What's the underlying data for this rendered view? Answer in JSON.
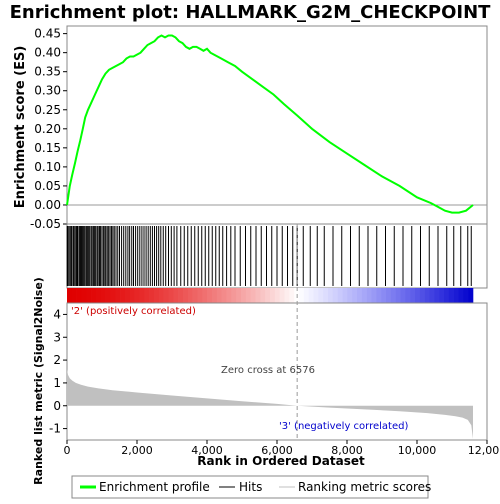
{
  "chart_data": {
    "type": "line",
    "title": "Enrichment plot: HALLMARK_G2M_CHECKPOINT",
    "panels": {
      "es": {
        "ylabel": "Enrichment score (ES)",
        "ylim": [
          -0.05,
          0.47
        ],
        "yticks": [
          "0.45",
          "0.40",
          "0.35",
          "0.30",
          "0.25",
          "0.20",
          "0.15",
          "0.10",
          "0.05",
          "0.00",
          "-0.05"
        ],
        "ytick_values": [
          0.45,
          0.4,
          0.35,
          0.3,
          0.25,
          0.2,
          0.15,
          0.1,
          0.05,
          0.0,
          -0.05
        ],
        "series": {
          "name": "Enrichment profile",
          "color": "#00ff00",
          "x": [
            0,
            80,
            150,
            230,
            300,
            380,
            450,
            520,
            600,
            700,
            800,
            900,
            1000,
            1100,
            1200,
            1300,
            1400,
            1500,
            1600,
            1700,
            1800,
            1900,
            2000,
            2100,
            2200,
            2300,
            2400,
            2500,
            2600,
            2700,
            2800,
            2900,
            3000,
            3100,
            3200,
            3300,
            3400,
            3500,
            3600,
            3700,
            3800,
            3900,
            4000,
            4100,
            4200,
            4400,
            4600,
            4800,
            5000,
            5300,
            5600,
            5900,
            6200,
            6576,
            7000,
            7500,
            8000,
            8500,
            9000,
            9500,
            10000,
            10400,
            10600,
            10800,
            11000,
            11200,
            11400,
            11600
          ],
          "y": [
            0.0,
            0.05,
            0.08,
            0.11,
            0.14,
            0.17,
            0.2,
            0.23,
            0.25,
            0.27,
            0.29,
            0.31,
            0.33,
            0.345,
            0.355,
            0.36,
            0.365,
            0.37,
            0.375,
            0.385,
            0.39,
            0.39,
            0.395,
            0.4,
            0.41,
            0.42,
            0.425,
            0.43,
            0.44,
            0.445,
            0.44,
            0.445,
            0.445,
            0.44,
            0.43,
            0.425,
            0.415,
            0.41,
            0.415,
            0.415,
            0.41,
            0.405,
            0.41,
            0.4,
            0.395,
            0.385,
            0.375,
            0.365,
            0.35,
            0.33,
            0.31,
            0.29,
            0.265,
            0.235,
            0.2,
            0.165,
            0.135,
            0.105,
            0.075,
            0.05,
            0.02,
            0.005,
            -0.005,
            -0.015,
            -0.02,
            -0.02,
            -0.015,
            0.0
          ]
        }
      },
      "hits": {
        "label": "Hits",
        "color": "#000000",
        "positions": [
          5,
          25,
          60,
          95,
          130,
          170,
          200,
          235,
          270,
          300,
          340,
          370,
          400,
          430,
          460,
          490,
          520,
          560,
          590,
          620,
          650,
          690,
          720,
          760,
          790,
          820,
          860,
          890,
          930,
          960,
          1000,
          1040,
          1080,
          1110,
          1150,
          1190,
          1230,
          1270,
          1310,
          1350,
          1400,
          1450,
          1500,
          1560,
          1620,
          1680,
          1740,
          1790,
          1850,
          1900,
          1960,
          2020,
          2080,
          2140,
          2200,
          2260,
          2320,
          2380,
          2440,
          2500,
          2560,
          2620,
          2680,
          2750,
          2820,
          2900,
          2980,
          3060,
          3140,
          3250,
          3350,
          3450,
          3550,
          3650,
          3750,
          3850,
          3950,
          4050,
          4150,
          4250,
          4350,
          4450,
          4560,
          4680,
          4800,
          4950,
          5100,
          5250,
          5400,
          5550,
          5700,
          5850,
          6000,
          6150,
          6300,
          6450,
          6576,
          6750,
          6950,
          7150,
          7350,
          7600,
          7850,
          8100,
          8350,
          8600,
          8850,
          9100,
          9350,
          9600,
          9850,
          10100,
          10350,
          10600,
          10850,
          11050,
          11250,
          11450,
          11550
        ]
      },
      "gradient": {
        "positive_label": "'2' (positively correlated)",
        "negative_label": "'3' (negatively correlated)",
        "positive_color": "#e00000",
        "negative_color": "#0000cc"
      },
      "metric": {
        "ylabel": "Ranked list metric (Signal2Noise)",
        "xlabel": "Rank in Ordered Dataset",
        "ylim": [
          -1.5,
          4.5
        ],
        "yticks": [
          "4",
          "3",
          "2",
          "1",
          "0",
          "-1"
        ],
        "ytick_values": [
          4,
          3,
          2,
          1,
          0,
          -1
        ],
        "fill_color": "#c0c0c0",
        "zero_cross_label": "Zero cross at 6576",
        "zero_cross": 6576,
        "x": [
          0,
          30,
          80,
          150,
          250,
          400,
          600,
          900,
          1300,
          2000,
          3000,
          4000,
          5000,
          6000,
          6576,
          7500,
          8500,
          9500,
          10300,
          10800,
          11100,
          11300,
          11450,
          11550,
          11600
        ],
        "y": [
          1.6,
          1.35,
          1.2,
          1.1,
          1.0,
          0.92,
          0.84,
          0.76,
          0.68,
          0.58,
          0.45,
          0.32,
          0.2,
          0.08,
          0.0,
          -0.08,
          -0.16,
          -0.24,
          -0.32,
          -0.4,
          -0.46,
          -0.52,
          -0.62,
          -0.85,
          -1.45
        ]
      }
    },
    "xlim": [
      0,
      12000
    ],
    "xticks": [
      "0",
      "2,000",
      "4,000",
      "6,000",
      "8,000",
      "10,000",
      "12,000"
    ],
    "xtick_values": [
      0,
      2000,
      4000,
      6000,
      8000,
      10000,
      12000
    ],
    "legend": {
      "position": "bottom",
      "items": [
        {
          "label": "Enrichment profile",
          "color": "#00ff00",
          "icon": "green-line"
        },
        {
          "label": "Hits",
          "color": "#000000",
          "icon": "black-line"
        },
        {
          "label": "Ranking metric scores",
          "color": "#c0c0c0",
          "icon": "gray-line"
        }
      ]
    }
  }
}
